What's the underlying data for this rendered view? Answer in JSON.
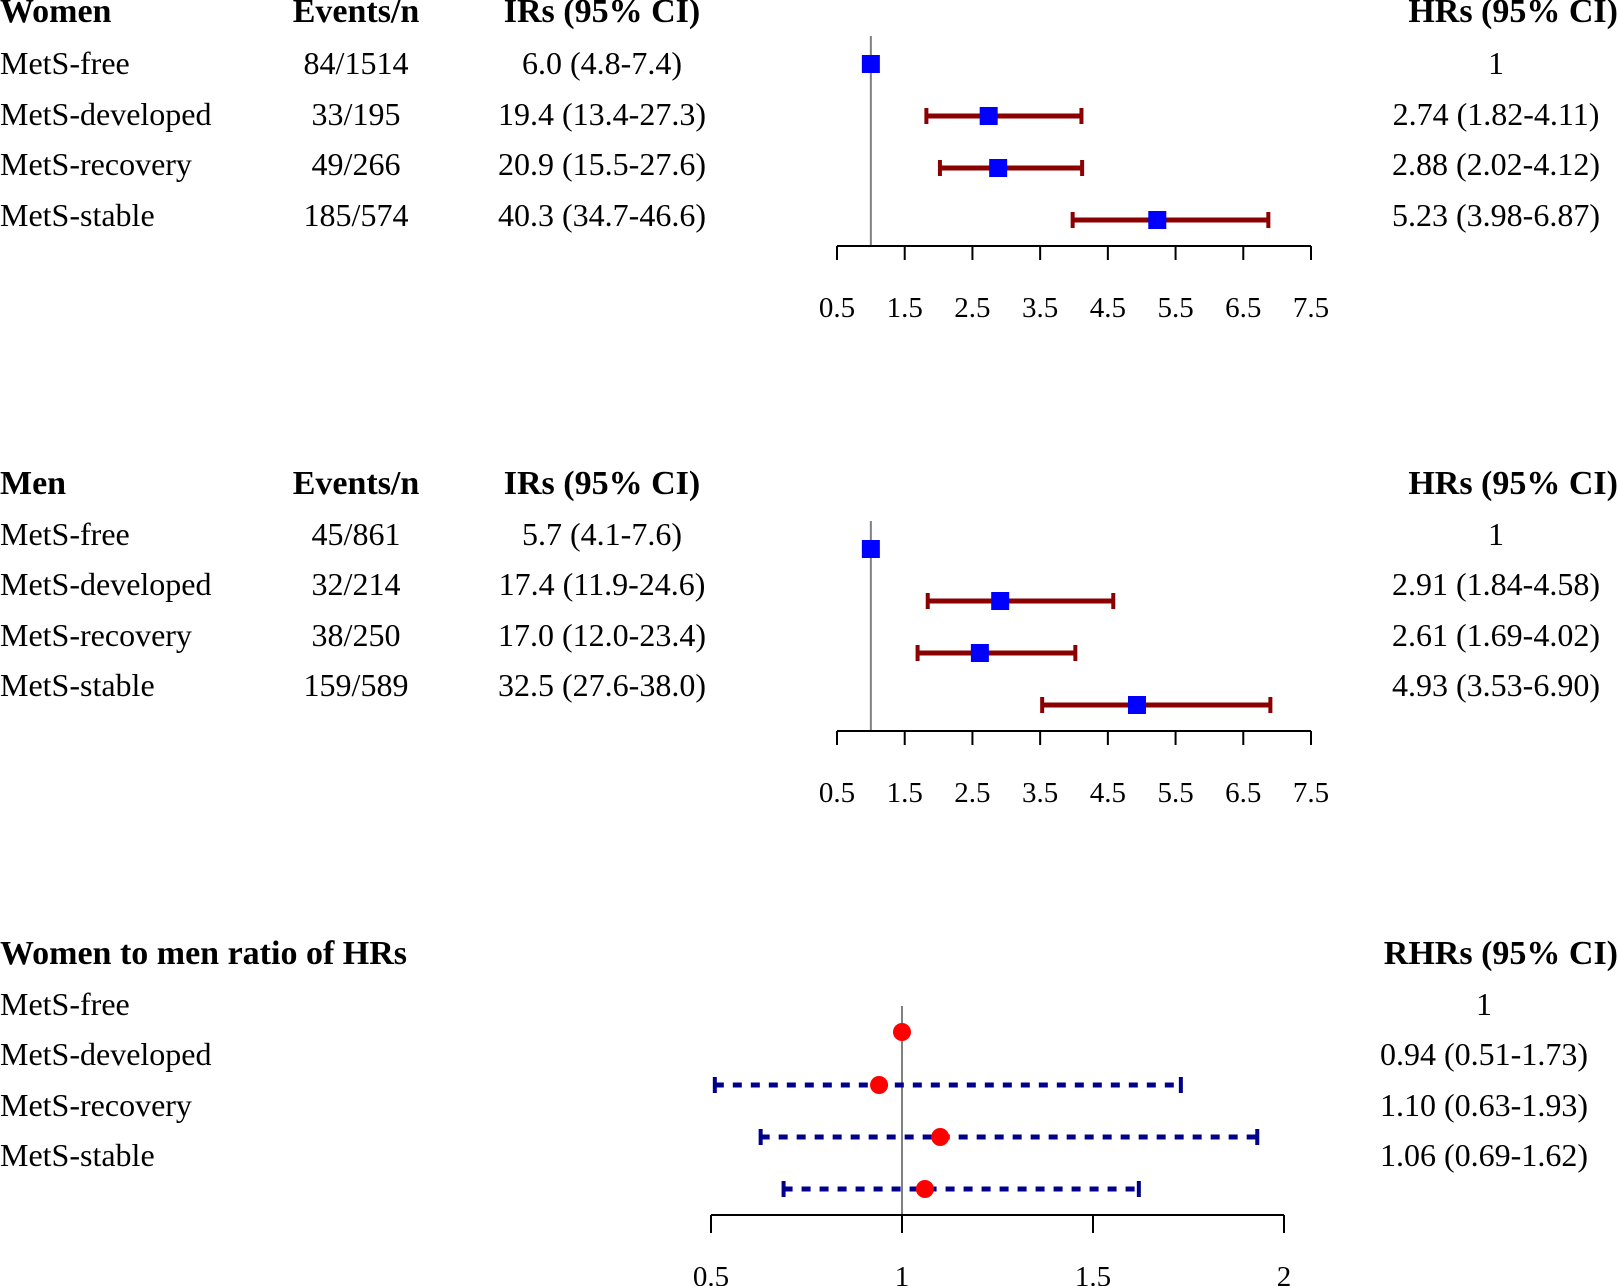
{
  "colors": {
    "hr_ci": "#8b0000",
    "hr_marker": "#0000ff",
    "rhr_ci": "#00008b",
    "rhr_marker": "#ff0000",
    "axis": "#000000",
    "ref_line": "#808080"
  },
  "panels": {
    "women": {
      "title": "Women",
      "col_events": "Events/n",
      "col_irs": "IRs (95% CI)",
      "col_hrs": "HRs (95% CI)",
      "rows": [
        {
          "label": "MetS-free",
          "events": "84/1514",
          "ir": "6.0 (4.8-7.4)",
          "hr": "1"
        },
        {
          "label": "MetS-developed",
          "events": "33/195",
          "ir": "19.4 (13.4-27.3)",
          "hr": "2.74 (1.82-4.11)"
        },
        {
          "label": "MetS-recovery",
          "events": "49/266",
          "ir": "20.9 (15.5-27.6)",
          "hr": "2.88 (2.02-4.12)"
        },
        {
          "label": "MetS-stable",
          "events": "185/574",
          "ir": "40.3 (34.7-46.6)",
          "hr": "5.23 (3.98-6.87)"
        }
      ]
    },
    "men": {
      "title": "Men",
      "col_events": "Events/n",
      "col_irs": "IRs (95% CI)",
      "col_hrs": "HRs (95% CI)",
      "rows": [
        {
          "label": "MetS-free",
          "events": "45/861",
          "ir": "5.7 (4.1-7.6)",
          "hr": "1"
        },
        {
          "label": "MetS-developed",
          "events": "32/214",
          "ir": "17.4 (11.9-24.6)",
          "hr": "2.91 (1.84-4.58)"
        },
        {
          "label": "MetS-recovery",
          "events": "38/250",
          "ir": "17.0 (12.0-23.4)",
          "hr": "2.61 (1.69-4.02)"
        },
        {
          "label": "MetS-stable",
          "events": "159/589",
          "ir": "32.5 (27.6-38.0)",
          "hr": "4.93 (3.53-6.90)"
        }
      ]
    },
    "ratio": {
      "title": "Women to men ratio of HRs",
      "col_rhrs": "RHRs (95% CI)",
      "rows": [
        {
          "label": "MetS-free",
          "rhr": "1"
        },
        {
          "label": "MetS-developed",
          "rhr": "0.94 (0.51-1.73)"
        },
        {
          "label": "MetS-recovery",
          "rhr": "1.10 (0.63-1.93)"
        },
        {
          "label": "MetS-stable",
          "rhr": "1.06 (0.69-1.62)"
        }
      ]
    }
  },
  "chart_data": [
    {
      "type": "forest",
      "title": "Women",
      "categories": [
        "MetS-free",
        "MetS-developed",
        "MetS-recovery",
        "MetS-stable"
      ],
      "estimates": [
        1,
        2.74,
        2.88,
        5.23
      ],
      "lower": [
        1,
        1.82,
        2.02,
        3.98
      ],
      "upper": [
        1,
        4.11,
        4.12,
        6.87
      ],
      "reference": 1,
      "xlim": [
        0.5,
        7.5
      ],
      "xticks": [
        0.5,
        1.5,
        2.5,
        3.5,
        4.5,
        5.5,
        6.5,
        7.5
      ],
      "xtick_labels": [
        "0.5",
        "1.5",
        "2.5",
        "3.5",
        "4.5",
        "5.5",
        "6.5",
        "7.5"
      ]
    },
    {
      "type": "forest",
      "title": "Men",
      "categories": [
        "MetS-free",
        "MetS-developed",
        "MetS-recovery",
        "MetS-stable"
      ],
      "estimates": [
        1,
        2.91,
        2.61,
        4.93
      ],
      "lower": [
        1,
        1.84,
        1.69,
        3.53
      ],
      "upper": [
        1,
        4.58,
        4.02,
        6.9
      ],
      "reference": 1,
      "xlim": [
        0.5,
        7.5
      ],
      "xticks": [
        0.5,
        1.5,
        2.5,
        3.5,
        4.5,
        5.5,
        6.5,
        7.5
      ],
      "xtick_labels": [
        "0.5",
        "1.5",
        "2.5",
        "3.5",
        "4.5",
        "5.5",
        "6.5",
        "7.5"
      ]
    },
    {
      "type": "forest",
      "title": "Women to men ratio of HRs",
      "categories": [
        "MetS-free",
        "MetS-developed",
        "MetS-recovery",
        "MetS-stable"
      ],
      "estimates": [
        1,
        0.94,
        1.1,
        1.06
      ],
      "lower": [
        1,
        0.51,
        0.63,
        0.69
      ],
      "upper": [
        1,
        1.73,
        1.93,
        1.62
      ],
      "reference": 1,
      "xlim": [
        0.5,
        2
      ],
      "xticks": [
        0.5,
        1,
        1.5,
        2
      ],
      "xtick_labels": [
        "0.5",
        "1",
        "1.5",
        "2"
      ]
    }
  ]
}
